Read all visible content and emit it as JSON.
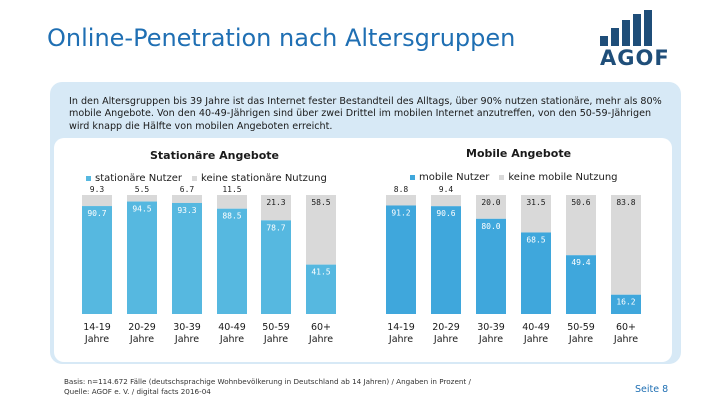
{
  "slide": {
    "title": "Online-Penetration nach Altersgruppen",
    "logo_text": "AGOF",
    "intro": "In den Altersgruppen bis 39 Jahre ist das Internet fester Bestandteil des Alltags, über 90% nutzen stationäre, mehr als 80% mobile Angebote. Von den 40-49-Jährigen sind über zwei Drittel im mobilen Internet anzutreffen, von den 50-59-Jährigen wird knapp die Hälfte von mobilen Angeboten erreicht.",
    "footer_line1": "Basis: n=114.672 Fälle (deutschsprachige Wohnbevölkerung in Deutschland ab 14 Jahren) / Angaben in Prozent /",
    "footer_line2": "Quelle: AGOF e. V. / digital facts 2016-04",
    "page_label": "Seite 8"
  },
  "colors": {
    "title": "#1f6fb3",
    "logo": "#1f4e79",
    "panel": "#d7e9f6",
    "stationary_use": "#56b8e0",
    "mobile_use": "#3fa7dc",
    "no_use": "#d9d9d9"
  },
  "chart_data": [
    {
      "type": "bar",
      "stacked": true,
      "title": "Stationäre Angebote",
      "categories": [
        "14-19\nJahre",
        "20-29\nJahre",
        "30-39\nJahre",
        "40-49\nJahre",
        "50-59\nJahre",
        "60+\nJahre"
      ],
      "series": [
        {
          "name": "stationäre Nutzer",
          "values": [
            90.7,
            94.5,
            93.3,
            88.5,
            78.7,
            41.5
          ]
        },
        {
          "name": "keine stationäre Nutzung",
          "values": [
            9.3,
            5.5,
            6.7,
            11.5,
            21.3,
            58.5
          ]
        }
      ],
      "ylim": [
        0,
        100
      ],
      "legend": "top"
    },
    {
      "type": "bar",
      "stacked": true,
      "title": "Mobile Angebote",
      "categories": [
        "14-19\nJahre",
        "20-29\nJahre",
        "30-39\nJahre",
        "40-49\nJahre",
        "50-59\nJahre",
        "60+\nJahre"
      ],
      "series": [
        {
          "name": "mobile Nutzer",
          "values": [
            91.2,
            90.6,
            80.0,
            68.5,
            49.4,
            16.2
          ]
        },
        {
          "name": "keine mobile Nutzung",
          "values": [
            8.8,
            9.4,
            20.0,
            31.5,
            50.6,
            83.8
          ]
        }
      ],
      "ylim": [
        0,
        100
      ],
      "legend": "top"
    }
  ]
}
